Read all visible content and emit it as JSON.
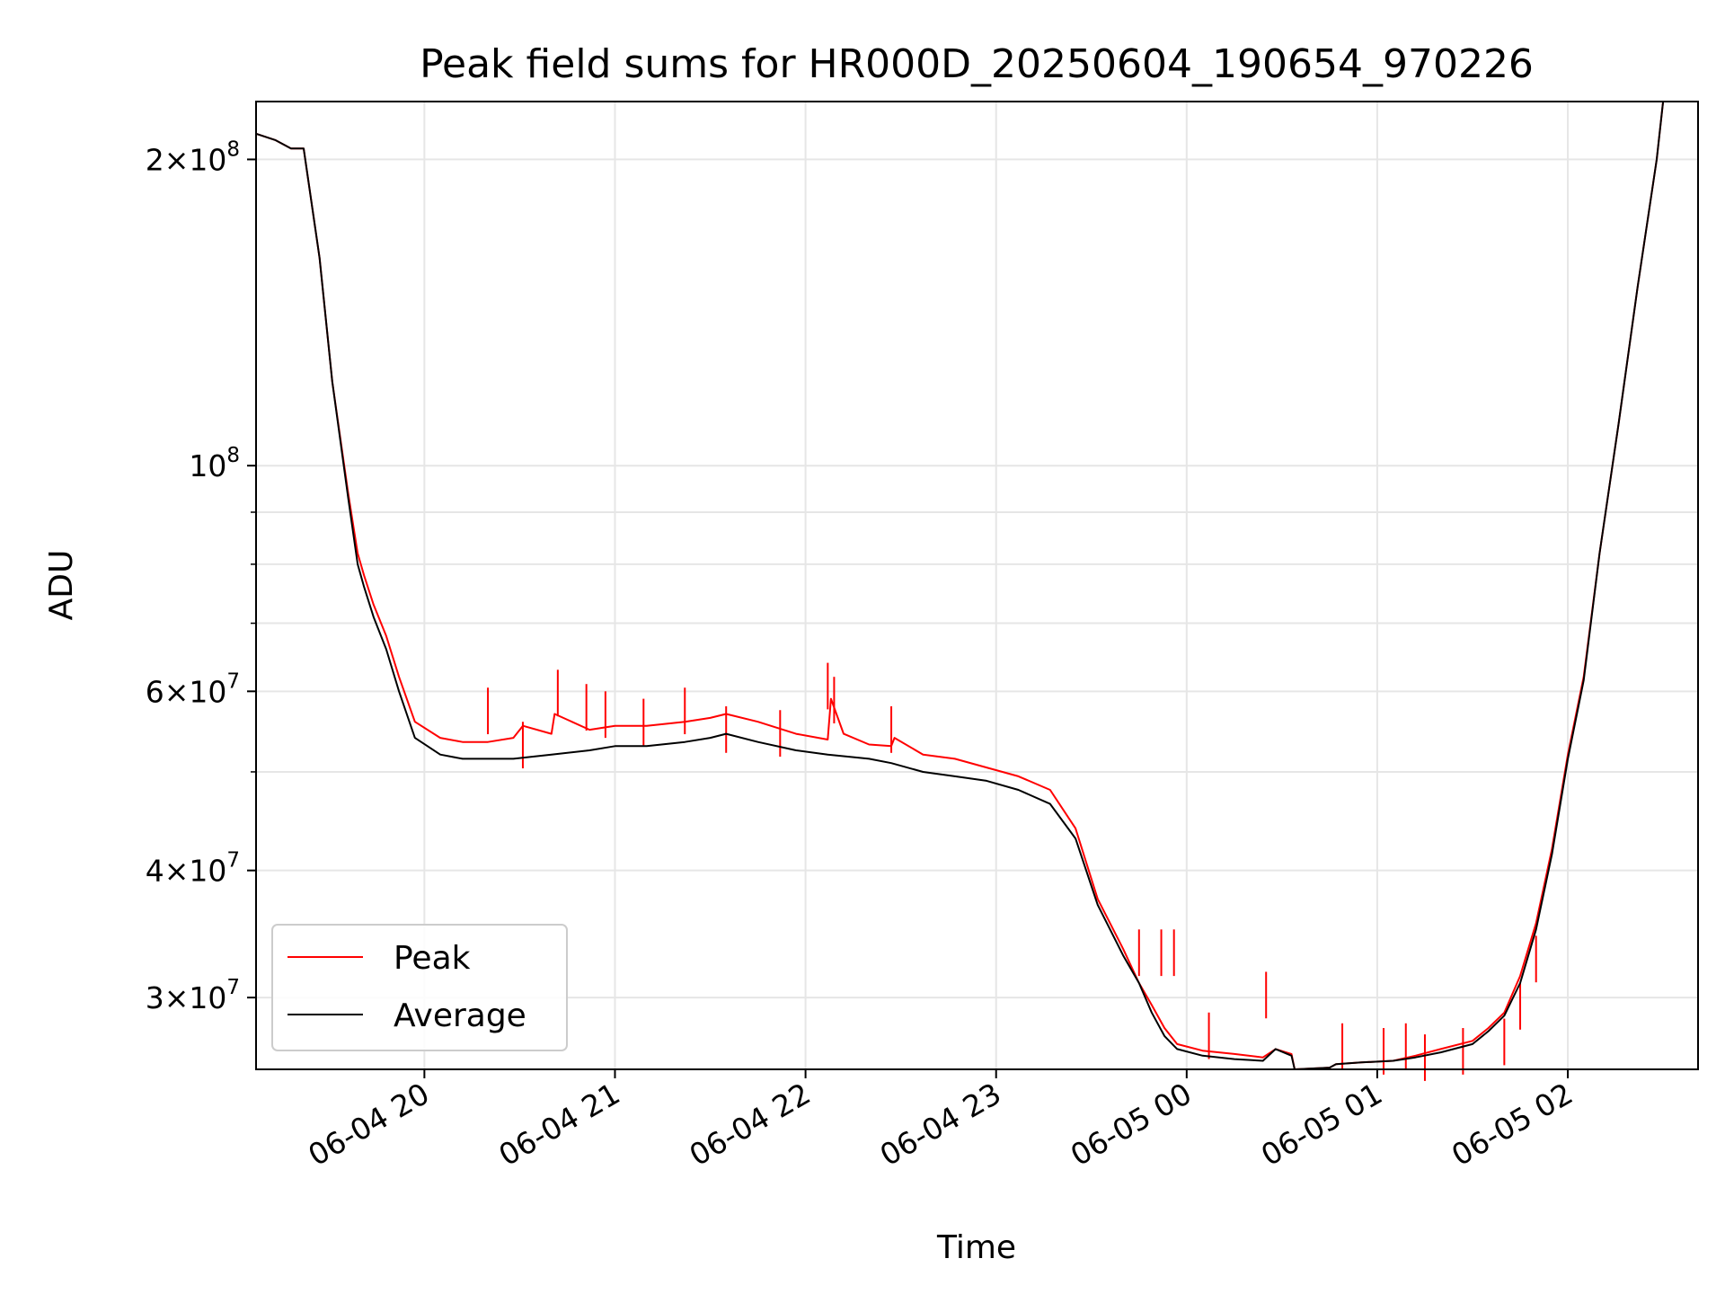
{
  "chart_data": {
    "type": "line",
    "title": "Peak field sums for HR000D_20250604_190654_970226",
    "xlabel": "Time",
    "ylabel": "ADU",
    "yscale": "log",
    "grid": true,
    "legend_position": "lower-left",
    "xlim": [
      "2025-06-04 19:07",
      "2025-06-05 02:41"
    ],
    "ylim": [
      25500000,
      228000000
    ],
    "x_ticks": [
      {
        "value": "2025-06-04 20:00",
        "label": "06-04 20"
      },
      {
        "value": "2025-06-04 21:00",
        "label": "06-04 21"
      },
      {
        "value": "2025-06-04 22:00",
        "label": "06-04 22"
      },
      {
        "value": "2025-06-04 23:00",
        "label": "06-04 23"
      },
      {
        "value": "2025-06-05 00:00",
        "label": "06-05 00"
      },
      {
        "value": "2025-06-05 01:00",
        "label": "06-05 01"
      },
      {
        "value": "2025-06-05 02:00",
        "label": "06-05 02"
      }
    ],
    "y_ticks": [
      {
        "value": 30000000,
        "mantissa": "3",
        "exponent": "7"
      },
      {
        "value": 40000000,
        "mantissa": "4",
        "exponent": "7"
      },
      {
        "value": 60000000,
        "mantissa": "6",
        "exponent": "7"
      },
      {
        "value": 100000000,
        "mantissa": "",
        "exponent": "8"
      },
      {
        "value": 200000000,
        "mantissa": "2",
        "exponent": "8"
      }
    ],
    "y_minor_ticks": [
      50000000,
      70000000,
      80000000,
      90000000
    ],
    "series": [
      {
        "name": "Peak",
        "color": "#ff0000",
        "x": [
          "2025-06-04 19:07",
          "2025-06-04 19:13",
          "2025-06-04 19:18",
          "2025-06-04 19:22",
          "2025-06-04 19:27",
          "2025-06-04 19:31",
          "2025-06-04 19:36",
          "2025-06-04 19:39",
          "2025-06-04 19:41",
          "2025-06-04 19:44",
          "2025-06-04 19:48",
          "2025-06-04 19:52",
          "2025-06-04 19:57",
          "2025-06-04 20:05",
          "2025-06-04 20:12",
          "2025-06-04 20:20",
          "2025-06-04 20:28",
          "2025-06-04 20:31",
          "2025-06-04 20:40",
          "2025-06-04 20:41",
          "2025-06-04 20:52",
          "2025-06-04 21:00",
          "2025-06-04 21:10",
          "2025-06-04 21:22",
          "2025-06-04 21:30",
          "2025-06-04 21:35",
          "2025-06-04 21:45",
          "2025-06-04 21:57",
          "2025-06-04 22:07",
          "2025-06-04 22:08",
          "2025-06-04 22:12",
          "2025-06-04 22:20",
          "2025-06-04 22:27",
          "2025-06-04 22:28",
          "2025-06-04 22:37",
          "2025-06-04 22:47",
          "2025-06-04 22:57",
          "2025-06-04 23:07",
          "2025-06-04 23:17",
          "2025-06-04 23:25",
          "2025-06-04 23:32",
          "2025-06-04 23:40",
          "2025-06-04 23:45",
          "2025-06-04 23:49",
          "2025-06-04 23:53",
          "2025-06-04 23:57",
          "2025-06-05 00:05",
          "2025-06-05 00:15",
          "2025-06-05 00:24",
          "2025-06-05 00:28",
          "2025-06-05 00:33",
          "2025-06-05 00:34",
          "2025-06-05 00:45",
          "2025-06-05 00:47",
          "2025-06-05 00:55",
          "2025-06-05 01:05",
          "2025-06-05 01:12",
          "2025-06-05 01:20",
          "2025-06-05 01:30",
          "2025-06-05 01:35",
          "2025-06-05 01:40",
          "2025-06-05 01:45",
          "2025-06-05 01:50",
          "2025-06-05 01:55",
          "2025-06-05 02:00",
          "2025-06-05 02:05",
          "2025-06-05 02:10",
          "2025-06-05 02:16",
          "2025-06-05 02:22",
          "2025-06-05 02:28",
          "2025-06-05 02:30"
        ],
        "values": [
          212000000,
          209000000,
          205000000,
          205000000,
          160000000,
          121000000,
          94000000,
          82000000,
          78000000,
          73000000,
          68000000,
          62000000,
          56000000,
          54000000,
          53500000,
          53500000,
          54000000,
          55500000,
          54500000,
          57000000,
          55000000,
          55500000,
          55500000,
          56000000,
          56500000,
          57000000,
          56000000,
          54500000,
          53800000,
          59000000,
          54500000,
          53200000,
          53000000,
          54000000,
          52000000,
          51500000,
          50500000,
          49500000,
          48000000,
          44000000,
          37500000,
          33500000,
          31000000,
          29500000,
          28000000,
          27000000,
          26600000,
          26400000,
          26200000,
          26700000,
          26400000,
          25500000,
          25600000,
          25800000,
          25900000,
          26000000,
          26300000,
          26700000,
          27200000,
          28000000,
          29000000,
          31500000,
          35500000,
          42000000,
          52000000,
          62000000,
          82000000,
          110000000,
          150000000,
          200000000,
          228000000
        ],
        "spikes": [
          {
            "x": "2025-06-04 20:20",
            "value": 60500000
          },
          {
            "x": "2025-06-04 20:31",
            "value": 56000000
          },
          {
            "x": "2025-06-04 20:42",
            "value": 63000000
          },
          {
            "x": "2025-06-04 20:51",
            "value": 61000000
          },
          {
            "x": "2025-06-04 20:57",
            "value": 60000000
          },
          {
            "x": "2025-06-04 21:09",
            "value": 59000000
          },
          {
            "x": "2025-06-04 21:22",
            "value": 60500000
          },
          {
            "x": "2025-06-04 21:35",
            "value": 58000000
          },
          {
            "x": "2025-06-04 21:52",
            "value": 57500000
          },
          {
            "x": "2025-06-04 22:07",
            "value": 64000000
          },
          {
            "x": "2025-06-04 22:09",
            "value": 62000000
          },
          {
            "x": "2025-06-04 22:27",
            "value": 58000000
          },
          {
            "x": "2025-06-04 23:45",
            "value": 35000000
          },
          {
            "x": "2025-06-04 23:52",
            "value": 35000000
          },
          {
            "x": "2025-06-04 23:56",
            "value": 35000000
          },
          {
            "x": "2025-06-05 00:07",
            "value": 29000000
          },
          {
            "x": "2025-06-05 00:25",
            "value": 31800000
          },
          {
            "x": "2025-06-05 00:49",
            "value": 28300000
          },
          {
            "x": "2025-06-05 01:02",
            "value": 28000000
          },
          {
            "x": "2025-06-05 01:09",
            "value": 28300000
          },
          {
            "x": "2025-06-05 01:15",
            "value": 27600000
          },
          {
            "x": "2025-06-05 01:27",
            "value": 28000000
          },
          {
            "x": "2025-06-05 01:40",
            "value": 28600000
          },
          {
            "x": "2025-06-05 01:45",
            "value": 31000000
          },
          {
            "x": "2025-06-05 01:50",
            "value": 34500000
          }
        ]
      },
      {
        "name": "Average",
        "color": "#000000",
        "x": [
          "2025-06-04 19:07",
          "2025-06-04 19:13",
          "2025-06-04 19:18",
          "2025-06-04 19:22",
          "2025-06-04 19:27",
          "2025-06-04 19:31",
          "2025-06-04 19:36",
          "2025-06-04 19:39",
          "2025-06-04 19:41",
          "2025-06-04 19:44",
          "2025-06-04 19:48",
          "2025-06-04 19:52",
          "2025-06-04 19:57",
          "2025-06-04 20:05",
          "2025-06-04 20:12",
          "2025-06-04 20:20",
          "2025-06-04 20:28",
          "2025-06-04 20:40",
          "2025-06-04 20:52",
          "2025-06-04 21:00",
          "2025-06-04 21:10",
          "2025-06-04 21:22",
          "2025-06-04 21:30",
          "2025-06-04 21:35",
          "2025-06-04 21:45",
          "2025-06-04 21:57",
          "2025-06-04 22:07",
          "2025-06-04 22:20",
          "2025-06-04 22:27",
          "2025-06-04 22:37",
          "2025-06-04 22:47",
          "2025-06-04 22:57",
          "2025-06-04 23:07",
          "2025-06-04 23:17",
          "2025-06-04 23:25",
          "2025-06-04 23:32",
          "2025-06-04 23:40",
          "2025-06-04 23:45",
          "2025-06-04 23:49",
          "2025-06-04 23:53",
          "2025-06-04 23:57",
          "2025-06-05 00:05",
          "2025-06-05 00:15",
          "2025-06-05 00:24",
          "2025-06-05 00:28",
          "2025-06-05 00:33",
          "2025-06-05 00:34",
          "2025-06-05 00:45",
          "2025-06-05 00:47",
          "2025-06-05 00:55",
          "2025-06-05 01:05",
          "2025-06-05 01:12",
          "2025-06-05 01:20",
          "2025-06-05 01:30",
          "2025-06-05 01:35",
          "2025-06-05 01:40",
          "2025-06-05 01:45",
          "2025-06-05 01:50",
          "2025-06-05 01:55",
          "2025-06-05 02:00",
          "2025-06-05 02:05",
          "2025-06-05 02:10",
          "2025-06-05 02:16",
          "2025-06-05 02:22",
          "2025-06-05 02:28",
          "2025-06-05 02:30"
        ],
        "values": [
          212000000,
          209000000,
          205000000,
          205000000,
          160000000,
          121000000,
          93000000,
          80000000,
          76000000,
          71000000,
          66000000,
          60000000,
          54000000,
          52000000,
          51500000,
          51500000,
          51500000,
          52000000,
          52500000,
          53000000,
          53000000,
          53500000,
          54000000,
          54500000,
          53500000,
          52500000,
          52000000,
          51500000,
          51000000,
          50000000,
          49500000,
          49000000,
          48000000,
          46500000,
          43000000,
          37000000,
          33000000,
          31000000,
          29000000,
          27500000,
          26700000,
          26300000,
          26100000,
          26000000,
          26700000,
          26300000,
          25500000,
          25600000,
          25800000,
          25900000,
          26000000,
          26200000,
          26500000,
          27000000,
          27800000,
          28800000,
          31000000,
          35000000,
          41500000,
          51500000,
          61500000,
          82000000,
          110000000,
          150000000,
          200000000,
          228000000
        ]
      }
    ]
  }
}
